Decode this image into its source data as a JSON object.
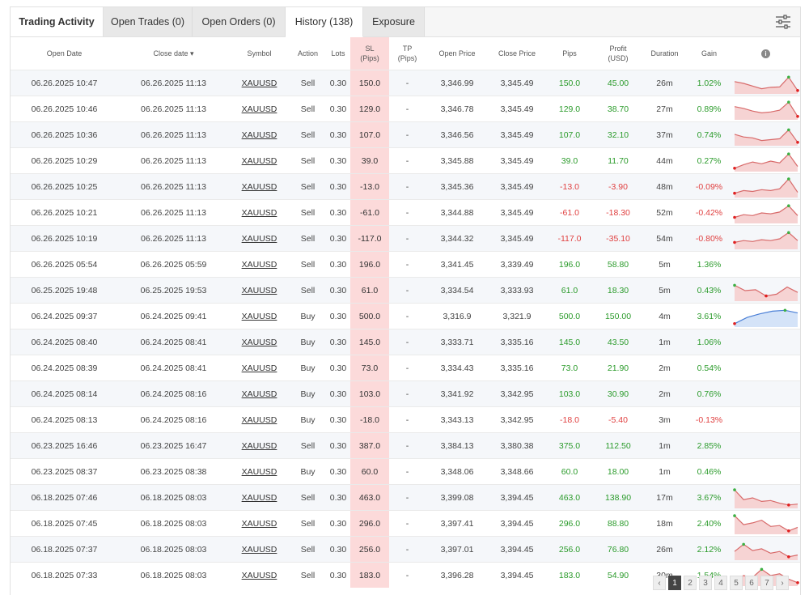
{
  "tabs": [
    {
      "label": "Trading Activity",
      "active": true
    },
    {
      "label": "Open Trades (0)"
    },
    {
      "label": "Open Orders (0)"
    },
    {
      "label": "History (138)"
    },
    {
      "label": "Exposure"
    }
  ],
  "columns": {
    "open_date": "Open Date",
    "close_date": "Close date ▾",
    "symbol": "Symbol",
    "action": "Action",
    "lots": "Lots",
    "sl_line1": "SL",
    "sl_line2": "(Pips)",
    "tp_line1": "TP",
    "tp_line2": "(Pips)",
    "open_price": "Open Price",
    "close_price": "Close Price",
    "pips": "Pips",
    "profit_line1": "Profit",
    "profit_line2": "(USD)",
    "duration": "Duration",
    "gain": "Gain",
    "chart_icon": "info-icon"
  },
  "rows": [
    {
      "open": "06.26.2025 10:47",
      "close": "06.26.2025 11:13",
      "symbol": "XAUUSD",
      "action": "Sell",
      "lots": "0.30",
      "sl": "150.0",
      "tp": "-",
      "open_price": "3,346.99",
      "close_price": "3,345.49",
      "pips": "150.0",
      "profit": "45.00",
      "duration": "26m",
      "gain": "1.02%",
      "sign": "pos",
      "spark": [
        0.6,
        0.5,
        0.35,
        0.2,
        0.28,
        0.3,
        0.85,
        0.1
      ],
      "spark_color": "red"
    },
    {
      "open": "06.26.2025 10:46",
      "close": "06.26.2025 11:13",
      "symbol": "XAUUSD",
      "action": "Sell",
      "lots": "0.30",
      "sl": "129.0",
      "tp": "-",
      "open_price": "3,346.78",
      "close_price": "3,345.49",
      "pips": "129.0",
      "profit": "38.70",
      "duration": "27m",
      "gain": "0.89%",
      "sign": "pos",
      "spark": [
        0.65,
        0.55,
        0.4,
        0.3,
        0.35,
        0.45,
        0.9,
        0.1
      ],
      "spark_color": "red"
    },
    {
      "open": "06.26.2025 10:36",
      "close": "06.26.2025 11:13",
      "symbol": "XAUUSD",
      "action": "Sell",
      "lots": "0.30",
      "sl": "107.0",
      "tp": "-",
      "open_price": "3,346.56",
      "close_price": "3,345.49",
      "pips": "107.0",
      "profit": "32.10",
      "duration": "37m",
      "gain": "0.74%",
      "sign": "pos",
      "spark": [
        0.55,
        0.4,
        0.35,
        0.2,
        0.25,
        0.3,
        0.8,
        0.1
      ],
      "spark_color": "red"
    },
    {
      "open": "06.26.2025 10:29",
      "close": "06.26.2025 11:13",
      "symbol": "XAUUSD",
      "action": "Sell",
      "lots": "0.30",
      "sl": "39.0",
      "tp": "-",
      "open_price": "3,345.88",
      "close_price": "3,345.49",
      "pips": "39.0",
      "profit": "11.70",
      "duration": "44m",
      "gain": "0.27%",
      "sign": "pos",
      "spark": [
        0.1,
        0.3,
        0.45,
        0.35,
        0.5,
        0.4,
        0.9,
        0.2
      ],
      "spark_color": "red"
    },
    {
      "open": "06.26.2025 10:25",
      "close": "06.26.2025 11:13",
      "symbol": "XAUUSD",
      "action": "Sell",
      "lots": "0.30",
      "sl": "-13.0",
      "tp": "-",
      "open_price": "3,345.36",
      "close_price": "3,345.49",
      "pips": "-13.0",
      "profit": "-3.90",
      "duration": "48m",
      "gain": "-0.09%",
      "sign": "neg",
      "spark": [
        0.15,
        0.3,
        0.25,
        0.35,
        0.3,
        0.4,
        0.95,
        0.2
      ],
      "spark_color": "red"
    },
    {
      "open": "06.26.2025 10:21",
      "close": "06.26.2025 11:13",
      "symbol": "XAUUSD",
      "action": "Sell",
      "lots": "0.30",
      "sl": "-61.0",
      "tp": "-",
      "open_price": "3,344.88",
      "close_price": "3,345.49",
      "pips": "-61.0",
      "profit": "-18.30",
      "duration": "52m",
      "gain": "-0.42%",
      "sign": "neg",
      "spark": [
        0.25,
        0.4,
        0.35,
        0.5,
        0.45,
        0.55,
        0.9,
        0.35
      ],
      "spark_color": "red"
    },
    {
      "open": "06.26.2025 10:19",
      "close": "06.26.2025 11:13",
      "symbol": "XAUUSD",
      "action": "Sell",
      "lots": "0.30",
      "sl": "-117.0",
      "tp": "-",
      "open_price": "3,344.32",
      "close_price": "3,345.49",
      "pips": "-117.0",
      "profit": "-35.10",
      "duration": "54m",
      "gain": "-0.80%",
      "sign": "neg",
      "spark": [
        0.3,
        0.4,
        0.35,
        0.45,
        0.4,
        0.5,
        0.85,
        0.4
      ],
      "spark_color": "red"
    },
    {
      "open": "06.26.2025 05:54",
      "close": "06.26.2025 05:59",
      "symbol": "XAUUSD",
      "action": "Sell",
      "lots": "0.30",
      "sl": "196.0",
      "tp": "-",
      "open_price": "3,341.45",
      "close_price": "3,339.49",
      "pips": "196.0",
      "profit": "58.80",
      "duration": "5m",
      "gain": "1.36%",
      "sign": "pos",
      "spark": null
    },
    {
      "open": "06.25.2025 19:48",
      "close": "06.25.2025 19:53",
      "symbol": "XAUUSD",
      "action": "Sell",
      "lots": "0.30",
      "sl": "61.0",
      "tp": "-",
      "open_price": "3,334.54",
      "close_price": "3,333.93",
      "pips": "61.0",
      "profit": "18.30",
      "duration": "5m",
      "gain": "0.43%",
      "sign": "pos",
      "spark": [
        0.8,
        0.5,
        0.55,
        0.2,
        0.3,
        0.7,
        0.4
      ],
      "spark_color": "red"
    },
    {
      "open": "06.24.2025 09:37",
      "close": "06.24.2025 09:41",
      "symbol": "XAUUSD",
      "action": "Buy",
      "lots": "0.30",
      "sl": "500.0",
      "tp": "-",
      "open_price": "3,316.9",
      "close_price": "3,321.9",
      "pips": "500.0",
      "profit": "150.00",
      "duration": "4m",
      "gain": "3.61%",
      "sign": "pos",
      "spark": [
        0.1,
        0.45,
        0.65,
        0.8,
        0.85,
        0.7
      ],
      "spark_color": "blue"
    },
    {
      "open": "06.24.2025 08:40",
      "close": "06.24.2025 08:41",
      "symbol": "XAUUSD",
      "action": "Buy",
      "lots": "0.30",
      "sl": "145.0",
      "tp": "-",
      "open_price": "3,333.71",
      "close_price": "3,335.16",
      "pips": "145.0",
      "profit": "43.50",
      "duration": "1m",
      "gain": "1.06%",
      "sign": "pos",
      "spark": null
    },
    {
      "open": "06.24.2025 08:39",
      "close": "06.24.2025 08:41",
      "symbol": "XAUUSD",
      "action": "Buy",
      "lots": "0.30",
      "sl": "73.0",
      "tp": "-",
      "open_price": "3,334.43",
      "close_price": "3,335.16",
      "pips": "73.0",
      "profit": "21.90",
      "duration": "2m",
      "gain": "0.54%",
      "sign": "pos",
      "spark": null
    },
    {
      "open": "06.24.2025 08:14",
      "close": "06.24.2025 08:16",
      "symbol": "XAUUSD",
      "action": "Buy",
      "lots": "0.30",
      "sl": "103.0",
      "tp": "-",
      "open_price": "3,341.92",
      "close_price": "3,342.95",
      "pips": "103.0",
      "profit": "30.90",
      "duration": "2m",
      "gain": "0.76%",
      "sign": "pos",
      "spark": null
    },
    {
      "open": "06.24.2025 08:13",
      "close": "06.24.2025 08:16",
      "symbol": "XAUUSD",
      "action": "Buy",
      "lots": "0.30",
      "sl": "-18.0",
      "tp": "-",
      "open_price": "3,343.13",
      "close_price": "3,342.95",
      "pips": "-18.0",
      "profit": "-5.40",
      "duration": "3m",
      "gain": "-0.13%",
      "sign": "neg",
      "spark": null
    },
    {
      "open": "06.23.2025 16:46",
      "close": "06.23.2025 16:47",
      "symbol": "XAUUSD",
      "action": "Sell",
      "lots": "0.30",
      "sl": "387.0",
      "tp": "-",
      "open_price": "3,384.13",
      "close_price": "3,380.38",
      "pips": "375.0",
      "profit": "112.50",
      "duration": "1m",
      "gain": "2.85%",
      "sign": "pos",
      "spark": null
    },
    {
      "open": "06.23.2025 08:37",
      "close": "06.23.2025 08:38",
      "symbol": "XAUUSD",
      "action": "Buy",
      "lots": "0.30",
      "sl": "60.0",
      "tp": "-",
      "open_price": "3,348.06",
      "close_price": "3,348.66",
      "pips": "60.0",
      "profit": "18.00",
      "duration": "1m",
      "gain": "0.46%",
      "sign": "pos",
      "spark": null
    },
    {
      "open": "06.18.2025 07:46",
      "close": "06.18.2025 08:03",
      "symbol": "XAUUSD",
      "action": "Sell",
      "lots": "0.30",
      "sl": "463.0",
      "tp": "-",
      "open_price": "3,399.08",
      "close_price": "3,394.45",
      "pips": "463.0",
      "profit": "138.90",
      "duration": "17m",
      "gain": "3.67%",
      "sign": "pos",
      "spark": [
        0.95,
        0.4,
        0.5,
        0.3,
        0.35,
        0.2,
        0.1,
        0.15
      ],
      "spark_color": "red"
    },
    {
      "open": "06.18.2025 07:45",
      "close": "06.18.2025 08:03",
      "symbol": "XAUUSD",
      "action": "Sell",
      "lots": "0.30",
      "sl": "296.0",
      "tp": "-",
      "open_price": "3,397.41",
      "close_price": "3,394.45",
      "pips": "296.0",
      "profit": "88.80",
      "duration": "18m",
      "gain": "2.40%",
      "sign": "pos",
      "spark": [
        0.95,
        0.45,
        0.55,
        0.7,
        0.35,
        0.4,
        0.1,
        0.3
      ],
      "spark_color": "red"
    },
    {
      "open": "06.18.2025 07:37",
      "close": "06.18.2025 08:03",
      "symbol": "XAUUSD",
      "action": "Sell",
      "lots": "0.30",
      "sl": "256.0",
      "tp": "-",
      "open_price": "3,397.01",
      "close_price": "3,394.45",
      "pips": "256.0",
      "profit": "76.80",
      "duration": "26m",
      "gain": "2.12%",
      "sign": "pos",
      "spark": [
        0.4,
        0.8,
        0.45,
        0.55,
        0.3,
        0.4,
        0.1,
        0.2
      ],
      "spark_color": "red"
    },
    {
      "open": "06.18.2025 07:33",
      "close": "06.18.2025 08:03",
      "symbol": "XAUUSD",
      "action": "Sell",
      "lots": "0.30",
      "sl": "183.0",
      "tp": "-",
      "open_price": "3,396.28",
      "close_price": "3,394.45",
      "pips": "183.0",
      "profit": "54.90",
      "duration": "30m",
      "gain": "1.54%",
      "sign": "pos",
      "spark": [
        0.3,
        0.5,
        0.4,
        0.85,
        0.5,
        0.6,
        0.3,
        0.1
      ],
      "spark_color": "red"
    }
  ],
  "pagination": {
    "prev": "‹",
    "pages": [
      "1",
      "2",
      "3",
      "4",
      "5",
      "6",
      "7"
    ],
    "active": "1",
    "next": "›"
  },
  "colors": {
    "positive": "#2b9b2b",
    "negative": "#e04040",
    "sl_column": "#fcdada",
    "spark_red_line": "#d86a6a",
    "spark_red_fill": "#f6d3d3",
    "spark_blue_line": "#4a7fd6",
    "spark_blue_fill": "#d4e3f8",
    "spark_green_point": "#3cb043",
    "spark_red_point": "#e02020"
  }
}
